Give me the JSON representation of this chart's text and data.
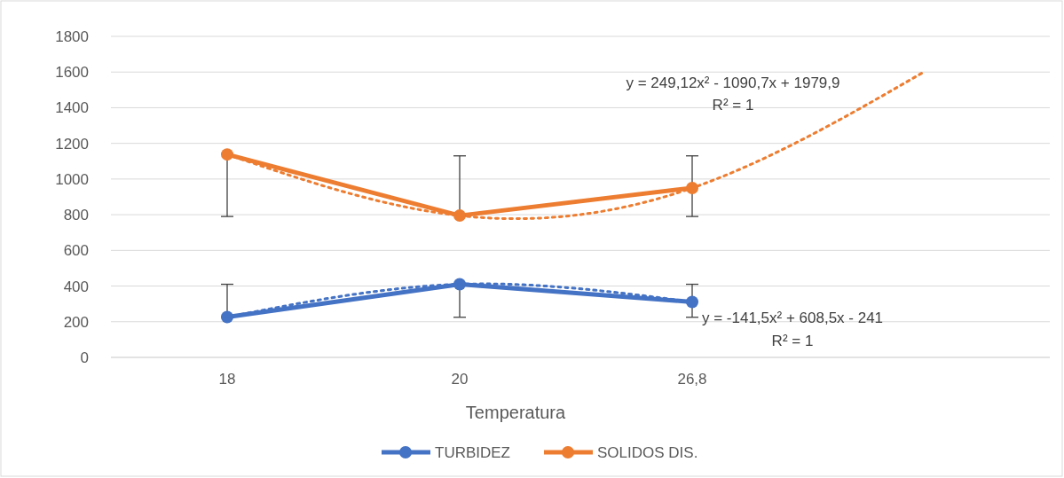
{
  "chart_data": {
    "type": "line",
    "xlabel": "Temperatura",
    "categories": [
      "18",
      "20",
      "26,8",
      null
    ],
    "series": [
      {
        "name": "TURBIDEZ",
        "color": "#4472c4",
        "values": [
          226,
          410,
          311,
          null
        ],
        "errors": [
          [
            226,
            410
          ],
          [
            225,
            410
          ],
          [
            225,
            410
          ],
          null
        ],
        "marker": "circle",
        "line_style": "solid"
      },
      {
        "name": "SOLIDOS DIS.",
        "color": "#ed7d31",
        "values": [
          1138,
          795,
          950,
          null
        ],
        "errors": [
          [
            790,
            1138
          ],
          [
            795,
            1130
          ],
          [
            790,
            1130
          ],
          null
        ],
        "marker": "circle",
        "line_style": "solid"
      },
      {
        "type": "line",
        "color": "#4472c4",
        "x": [
          "18",
          "20",
          "26,8"
        ],
        "values": [
          226,
          410,
          311
        ],
        "marker": "none",
        "line_style": "dotted"
      },
      {
        "type": "line",
        "color": "#ed7d31",
        "x": [
          "18",
          "20",
          "26,8",
          null
        ],
        "values": [
          1138,
          795,
          950,
          1603
        ],
        "marker": "none",
        "line_style": "dotted"
      }
    ],
    "annotations": [
      "y = 249,12x² - 1090,7x + 1979,9",
      "R² = 1",
      "y = -141,5x² + 608,5x - 241",
      "R² = 1"
    ],
    "ylim": [
      0,
      1800
    ],
    "yticks": [
      0,
      200,
      400,
      600,
      800,
      1000,
      1200,
      1400,
      1600,
      1800
    ],
    "grid": "y",
    "legend": "bottom"
  }
}
